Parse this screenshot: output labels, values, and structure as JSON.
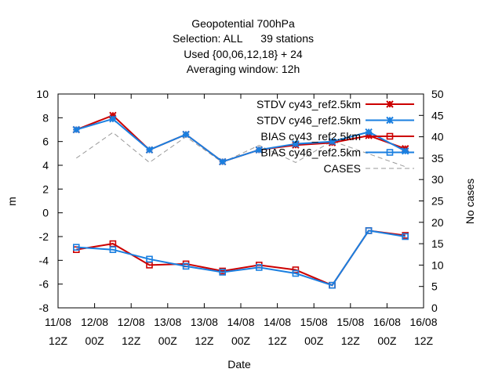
{
  "chart_data": {
    "type": "line",
    "title_lines": [
      "Geopotential 700hPa",
      "Selection: ALL      39 stations",
      "Used {00,06,12,18} + 24",
      "Averaging window: 12h"
    ],
    "xlabel": "Date",
    "ylabel": "m",
    "y2label": "No cases",
    "ylim": [
      -8,
      10
    ],
    "y2lim": [
      0,
      50
    ],
    "yticks": [
      -8,
      -6,
      -4,
      -2,
      0,
      2,
      4,
      6,
      8,
      10
    ],
    "y2ticks": [
      0,
      5,
      10,
      15,
      20,
      25,
      30,
      35,
      40,
      45,
      50
    ],
    "xticks": [
      {
        "day": 0,
        "top": "11/08",
        "bottom": "12Z"
      },
      {
        "day": 0.5,
        "top": "12/08",
        "bottom": "00Z"
      },
      {
        "day": 1,
        "top": "12/08",
        "bottom": "12Z"
      },
      {
        "day": 1.5,
        "top": "13/08",
        "bottom": "00Z"
      },
      {
        "day": 2,
        "top": "13/08",
        "bottom": "12Z"
      },
      {
        "day": 2.5,
        "top": "14/08",
        "bottom": "00Z"
      },
      {
        "day": 3,
        "top": "14/08",
        "bottom": "12Z"
      },
      {
        "day": 3.5,
        "top": "15/08",
        "bottom": "00Z"
      },
      {
        "day": 4,
        "top": "15/08",
        "bottom": "12Z"
      },
      {
        "day": 4.5,
        "top": "16/08",
        "bottom": "00Z"
      },
      {
        "day": 5,
        "top": "16/08",
        "bottom": "12Z"
      }
    ],
    "x": [
      0.25,
      0.75,
      1.25,
      1.75,
      2.25,
      2.75,
      3.25,
      3.75,
      4.25,
      4.75
    ],
    "series": [
      {
        "name": "STDV cy43_ref2.5km",
        "color": "#cc0000",
        "marker": "star",
        "dash": "",
        "values": [
          7.0,
          8.2,
          5.3,
          6.6,
          4.3,
          5.3,
          5.7,
          5.9,
          6.5,
          5.4
        ]
      },
      {
        "name": "STDV cy46_ref2.5km",
        "color": "#1a7fe0",
        "marker": "star",
        "dash": "",
        "values": [
          7.0,
          7.9,
          5.3,
          6.6,
          4.3,
          5.3,
          5.8,
          6.0,
          6.8,
          5.2
        ]
      },
      {
        "name": "BIAS cy43_ref2.5km",
        "color": "#cc0000",
        "marker": "square",
        "dash": "",
        "values": [
          -3.1,
          -2.6,
          -4.4,
          -4.3,
          -4.9,
          -4.4,
          -4.8,
          -6.1,
          -1.5,
          -1.9
        ]
      },
      {
        "name": "BIAS cy46_ref2.5km",
        "color": "#1a7fe0",
        "marker": "square",
        "dash": "",
        "values": [
          -2.9,
          -3.1,
          -3.9,
          -4.5,
          -5.0,
          -4.6,
          -5.1,
          -6.1,
          -1.5,
          -2.0
        ]
      },
      {
        "name": "CASES",
        "color": "#999999",
        "marker": "none",
        "dash": "6,4",
        "axis": "y2",
        "values": [
          35,
          41,
          34,
          40,
          34,
          38,
          34,
          39,
          36,
          33
        ]
      }
    ],
    "legend_position": "top-right",
    "grid": false
  }
}
